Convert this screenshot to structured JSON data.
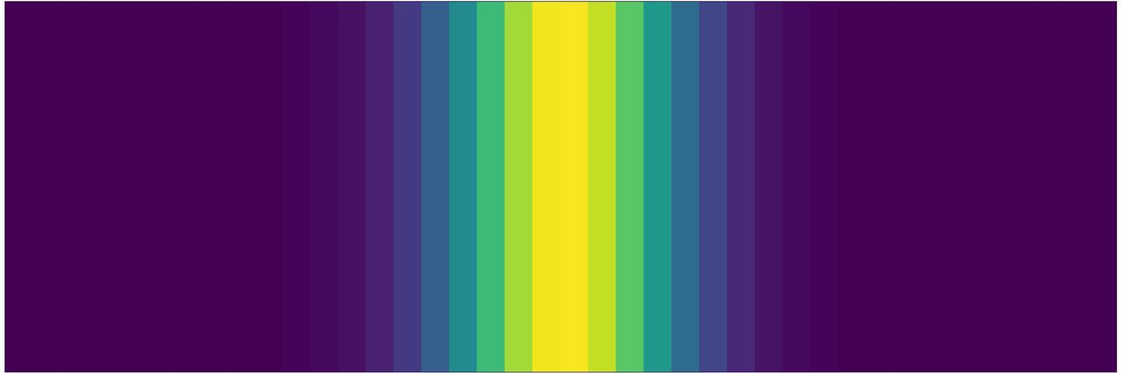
{
  "chart_data": {
    "type": "heatmap",
    "color": "viridis",
    "tick_labels": false,
    "xlim": [
      0,
      1
    ],
    "bins": [
      0,
      0.025,
      0.05,
      0.075,
      0.1,
      0.125,
      0.15,
      0.175,
      0.2,
      0.225,
      0.25,
      0.275,
      0.3,
      0.325,
      0.35,
      0.375,
      0.4,
      0.425,
      0.45,
      0.475,
      0.5,
      0.525,
      0.55,
      0.575,
      0.6,
      0.625,
      0.65,
      0.675,
      0.7,
      0.725,
      0.75,
      0.775,
      0.8,
      0.825,
      0.85,
      0.875,
      0.9,
      0.925,
      0.95,
      0.975,
      1
    ],
    "values": [
      0,
      0,
      0,
      0,
      0,
      0,
      0,
      0,
      0,
      0,
      0.01,
      0.02,
      0.04,
      0.09,
      0.17,
      0.3,
      0.48,
      0.68,
      0.86,
      0.98,
      0.99,
      0.91,
      0.74,
      0.54,
      0.35,
      0.21,
      0.11,
      0.05,
      0.02,
      0.01,
      0,
      0,
      0,
      0,
      0,
      0,
      0,
      0,
      0,
      0
    ],
    "color_range": [
      0,
      1
    ]
  }
}
